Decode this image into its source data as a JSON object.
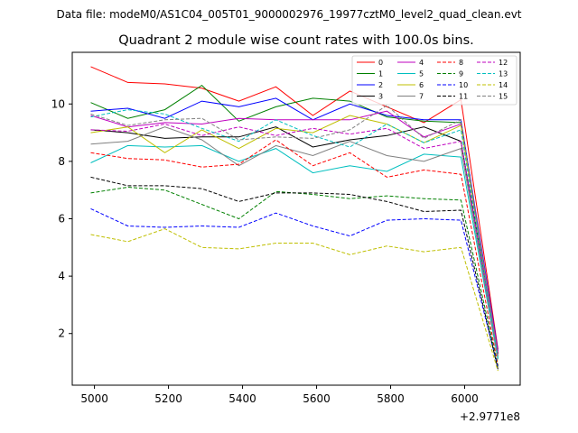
{
  "header": {
    "data_file": "Data file: modeM0/AS1C04_005T01_9000002976_19977cztM0_level2_quad_clean.evt"
  },
  "chart_data": {
    "type": "line",
    "title": "Quadrant 2 module wise count rates with 100.0s bins.",
    "xlabel": "",
    "ylabel": "",
    "x_offset_label": "+2.9771e8",
    "xlim": [
      4940,
      6150
    ],
    "ylim": [
      0.2,
      11.8
    ],
    "xticks": [
      5000,
      5200,
      5400,
      5600,
      5800,
      6000
    ],
    "yticks": [
      2,
      4,
      6,
      8,
      10
    ],
    "grid": false,
    "legend_position": "top-right",
    "x": [
      4990,
      5090,
      5190,
      5290,
      5390,
      5490,
      5590,
      5690,
      5790,
      5890,
      5990,
      6090
    ],
    "series": [
      {
        "name": "0",
        "color": "#ff0000",
        "style": "solid",
        "values": [
          11.3,
          10.75,
          10.7,
          10.55,
          10.1,
          10.6,
          9.6,
          10.45,
          9.9,
          9.35,
          10.15,
          1.45
        ]
      },
      {
        "name": "1",
        "color": "#008000",
        "style": "solid",
        "values": [
          10.05,
          9.5,
          9.8,
          10.65,
          9.4,
          9.9,
          10.2,
          10.1,
          9.55,
          9.4,
          9.35,
          1.3
        ]
      },
      {
        "name": "2",
        "color": "#0000ff",
        "style": "solid",
        "values": [
          9.75,
          9.85,
          9.5,
          10.1,
          9.9,
          10.2,
          9.45,
          10.0,
          9.6,
          9.45,
          9.45,
          1.4
        ]
      },
      {
        "name": "3",
        "color": "#000000",
        "style": "solid",
        "values": [
          9.1,
          9.0,
          8.8,
          8.85,
          8.85,
          9.2,
          8.5,
          8.75,
          8.9,
          9.2,
          8.7,
          1.3
        ]
      },
      {
        "name": "4",
        "color": "#bf00bf",
        "style": "solid",
        "values": [
          9.6,
          9.2,
          9.35,
          9.3,
          9.5,
          9.45,
          9.45,
          9.45,
          9.75,
          8.85,
          9.3,
          1.35
        ]
      },
      {
        "name": "5",
        "color": "#00bfbf",
        "style": "solid",
        "values": [
          7.95,
          8.55,
          8.5,
          8.55,
          8.0,
          8.45,
          7.6,
          7.85,
          7.65,
          8.25,
          8.15,
          1.1
        ]
      },
      {
        "name": "6",
        "color": "#bfbf00",
        "style": "solid",
        "values": [
          9.0,
          9.2,
          8.3,
          9.1,
          8.45,
          9.15,
          9.0,
          9.6,
          9.3,
          8.65,
          9.25,
          1.2
        ]
      },
      {
        "name": "7",
        "color": "#808080",
        "style": "solid",
        "values": [
          8.6,
          8.7,
          9.2,
          8.75,
          7.85,
          8.55,
          8.2,
          8.7,
          8.2,
          8.0,
          8.45,
          1.15
        ]
      },
      {
        "name": "8",
        "color": "#ff0000",
        "style": "dashed",
        "values": [
          8.3,
          8.1,
          8.05,
          7.8,
          7.9,
          8.75,
          7.85,
          8.3,
          7.45,
          7.7,
          7.55,
          0.9
        ]
      },
      {
        "name": "9",
        "color": "#008000",
        "style": "dashed",
        "values": [
          6.9,
          7.1,
          7.0,
          6.5,
          6.0,
          6.95,
          6.85,
          6.7,
          6.8,
          6.7,
          6.65,
          0.85
        ]
      },
      {
        "name": "10",
        "color": "#0000ff",
        "style": "dashed",
        "values": [
          6.35,
          5.75,
          5.7,
          5.75,
          5.7,
          6.2,
          5.75,
          5.4,
          5.95,
          6.0,
          5.95,
          0.8
        ]
      },
      {
        "name": "11",
        "color": "#000000",
        "style": "dashed",
        "values": [
          7.45,
          7.15,
          7.15,
          7.05,
          6.6,
          6.9,
          6.9,
          6.85,
          6.6,
          6.25,
          6.3,
          0.75
        ]
      },
      {
        "name": "12",
        "color": "#bf00bf",
        "style": "dashed",
        "values": [
          9.1,
          9.05,
          9.3,
          8.9,
          9.2,
          8.9,
          9.15,
          8.95,
          9.15,
          8.45,
          8.7,
          1.25
        ]
      },
      {
        "name": "13",
        "color": "#00bfbf",
        "style": "dashed",
        "values": [
          9.55,
          9.8,
          9.65,
          9.15,
          8.7,
          9.45,
          8.9,
          8.5,
          9.3,
          8.65,
          9.1,
          1.15
        ]
      },
      {
        "name": "14",
        "color": "#bfbf00",
        "style": "dashed",
        "values": [
          5.45,
          5.2,
          5.65,
          5.0,
          4.95,
          5.15,
          5.15,
          4.75,
          5.05,
          4.85,
          5.0,
          0.7
        ]
      },
      {
        "name": "15",
        "color": "#808080",
        "style": "dashed",
        "values": [
          9.65,
          9.25,
          9.45,
          9.5,
          8.75,
          8.85,
          8.8,
          9.1,
          9.95,
          8.8,
          9.45,
          1.2
        ]
      }
    ]
  }
}
